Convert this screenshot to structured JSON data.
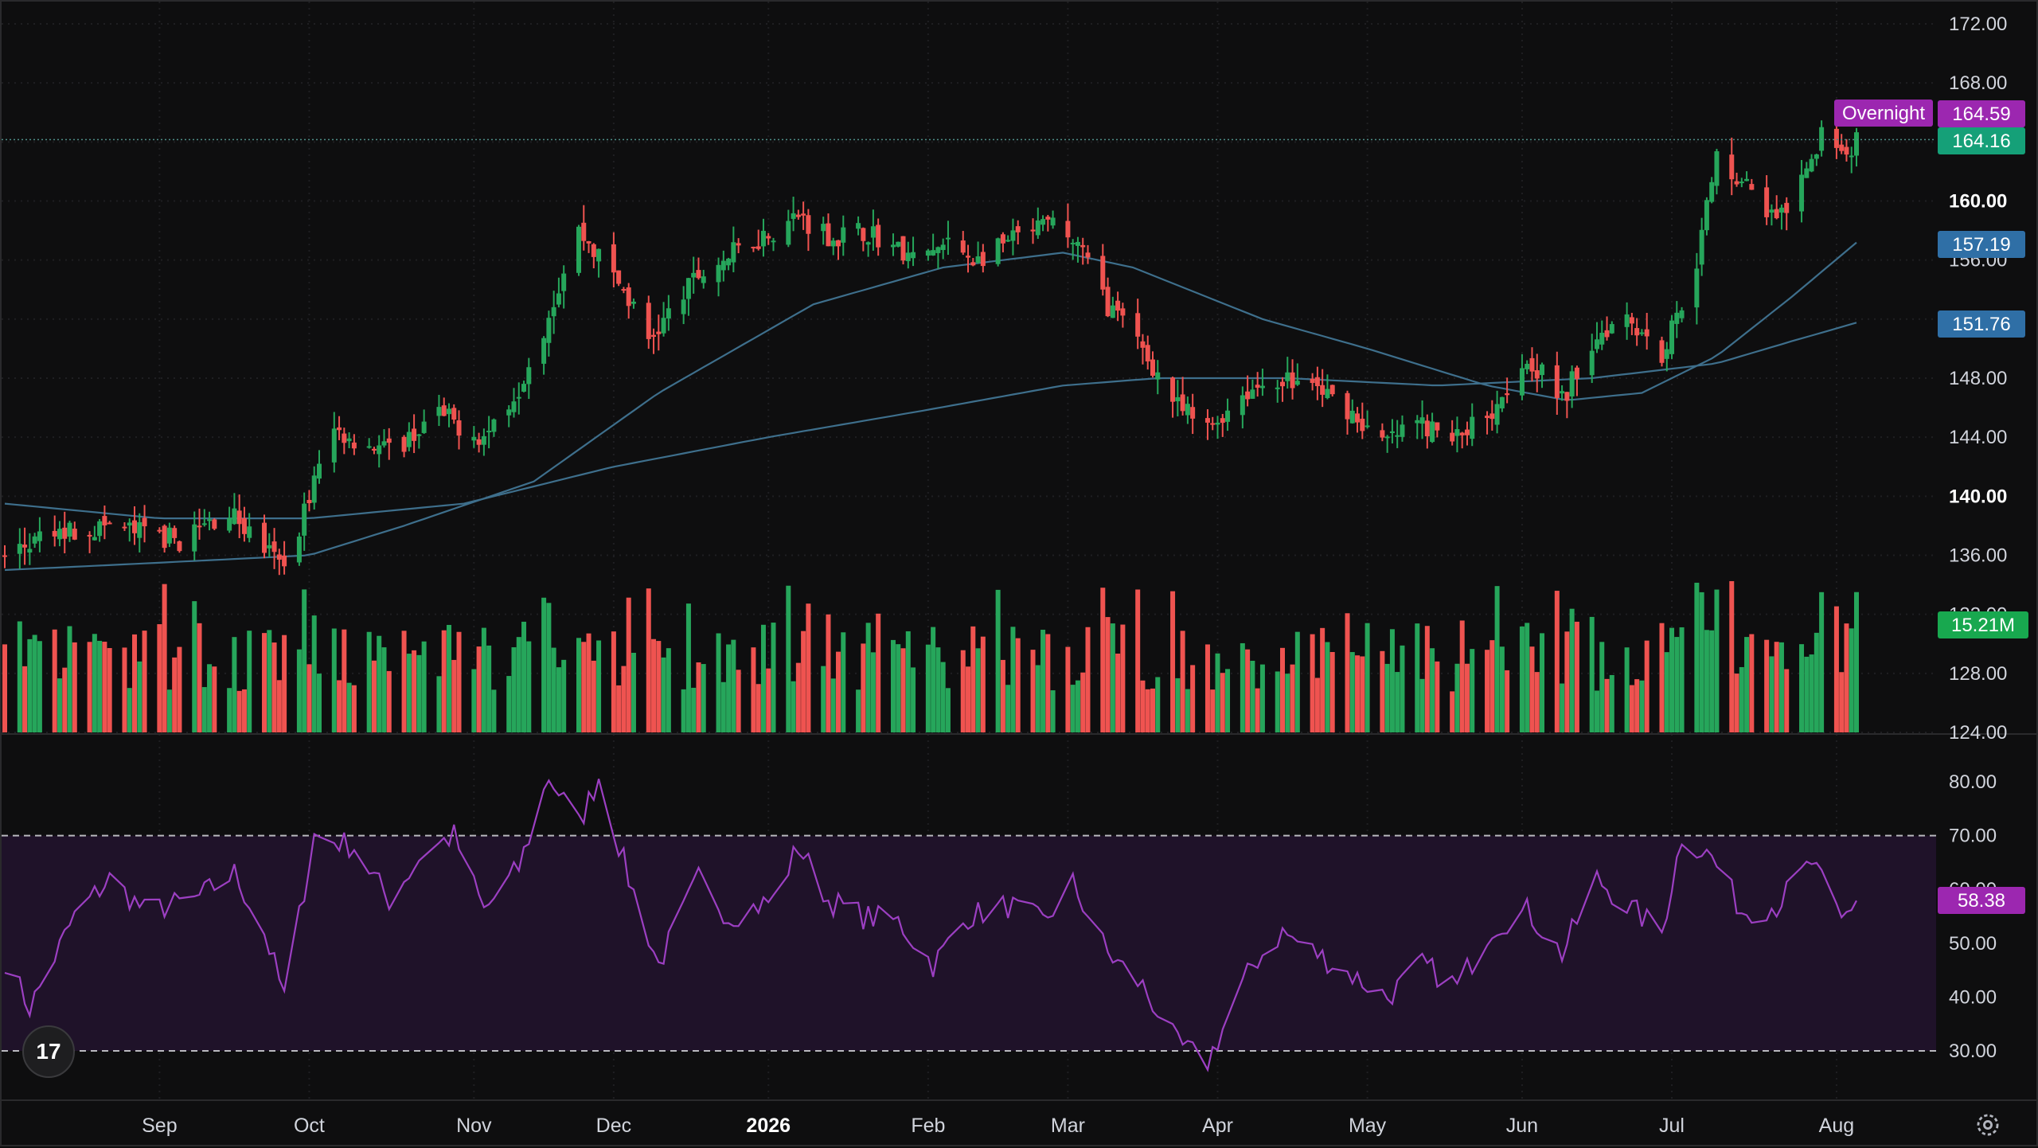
{
  "chart_data": {
    "type": "candlestick",
    "price_axis": {
      "ticks": [
        "172.00",
        "168.00",
        "164.00",
        "160.00",
        "156.00",
        "152.00",
        "148.00",
        "144.00",
        "140.00",
        "136.00",
        "132.00",
        "128.00",
        "124.00"
      ],
      "bold_ticks": [
        "160.00",
        "140.00"
      ],
      "range": [
        124,
        172
      ]
    },
    "time_axis": {
      "labels": [
        "Sep",
        "Oct",
        "Nov",
        "Dec",
        "2026",
        "Feb",
        "Mar",
        "Apr",
        "May",
        "Jun",
        "Jul",
        "Aug"
      ],
      "bold_labels": [
        "2026"
      ]
    },
    "price_anchors": [
      [
        "2025-08-01",
        136.0
      ],
      [
        "2025-08-12",
        137.5
      ],
      [
        "2025-08-22",
        138.0
      ],
      [
        "2025-09-05",
        137.0
      ],
      [
        "2025-09-15",
        139.0
      ],
      [
        "2025-09-26",
        135.0
      ],
      [
        "2025-10-02",
        141.0
      ],
      [
        "2025-10-06",
        144.5
      ],
      [
        "2025-10-17",
        143.0
      ],
      [
        "2025-10-27",
        145.5
      ],
      [
        "2025-11-05",
        144.0
      ],
      [
        "2025-11-12",
        147.5
      ],
      [
        "2025-11-17",
        151.5
      ],
      [
        "2025-11-24",
        158.0
      ],
      [
        "2025-12-03",
        154.0
      ],
      [
        "2025-12-08",
        150.5
      ],
      [
        "2025-12-18",
        155.0
      ],
      [
        "2025-12-30",
        157.5
      ],
      [
        "2026-01-07",
        159.0
      ],
      [
        "2026-01-14",
        157.5
      ],
      [
        "2026-01-21",
        158.0
      ],
      [
        "2026-01-30",
        156.0
      ],
      [
        "2026-02-06",
        157.0
      ],
      [
        "2026-02-12",
        156.0
      ],
      [
        "2026-02-20",
        157.5
      ],
      [
        "2026-02-27",
        158.5
      ],
      [
        "2026-03-04",
        157.0
      ],
      [
        "2026-03-10",
        153.0
      ],
      [
        "2026-03-17",
        150.0
      ],
      [
        "2026-03-24",
        146.0
      ],
      [
        "2026-03-30",
        144.5
      ],
      [
        "2026-04-06",
        147.0
      ],
      [
        "2026-04-13",
        148.0
      ],
      [
        "2026-04-20",
        147.5
      ],
      [
        "2026-04-27",
        146.0
      ],
      [
        "2026-05-04",
        143.5
      ],
      [
        "2026-05-11",
        145.0
      ],
      [
        "2026-05-18",
        143.8
      ],
      [
        "2026-05-26",
        146.0
      ],
      [
        "2026-06-02",
        149.5
      ],
      [
        "2026-06-09",
        146.5
      ],
      [
        "2026-06-16",
        151.0
      ],
      [
        "2026-06-22",
        152.5
      ],
      [
        "2026-06-29",
        149.5
      ],
      [
        "2026-07-06",
        156.0
      ],
      [
        "2026-07-10",
        163.0
      ],
      [
        "2026-07-16",
        161.0
      ],
      [
        "2026-07-22",
        158.5
      ],
      [
        "2026-07-28",
        161.5
      ],
      [
        "2026-08-01",
        165.5
      ],
      [
        "2026-08-05",
        163.0
      ],
      [
        "2026-08-07",
        164.16
      ]
    ],
    "ma_fast_anchors": [
      [
        "2025-08-01",
        135.0
      ],
      [
        "2025-09-01",
        135.5
      ],
      [
        "2025-10-01",
        136.0
      ],
      [
        "2025-10-20",
        138.0
      ],
      [
        "2025-11-15",
        141.0
      ],
      [
        "2025-12-10",
        147.0
      ],
      [
        "2026-01-10",
        153.0
      ],
      [
        "2026-02-05",
        155.5
      ],
      [
        "2026-03-01",
        156.5
      ],
      [
        "2026-03-15",
        155.5
      ],
      [
        "2026-04-10",
        152.0
      ],
      [
        "2026-05-01",
        150.0
      ],
      [
        "2026-05-25",
        147.5
      ],
      [
        "2026-06-10",
        146.5
      ],
      [
        "2026-06-25",
        147.0
      ],
      [
        "2026-07-10",
        149.5
      ],
      [
        "2026-07-25",
        153.5
      ],
      [
        "2026-08-07",
        157.19
      ]
    ],
    "ma_slow_anchors": [
      [
        "2025-08-01",
        139.5
      ],
      [
        "2025-09-01",
        138.5
      ],
      [
        "2025-10-01",
        138.5
      ],
      [
        "2025-11-01",
        139.5
      ],
      [
        "2025-12-01",
        142.0
      ],
      [
        "2026-01-01",
        144.0
      ],
      [
        "2026-02-01",
        145.8
      ],
      [
        "2026-03-01",
        147.5
      ],
      [
        "2026-03-20",
        148.0
      ],
      [
        "2026-04-15",
        148.0
      ],
      [
        "2026-05-15",
        147.5
      ],
      [
        "2026-06-15",
        148.0
      ],
      [
        "2026-07-10",
        149.0
      ],
      [
        "2026-07-25",
        150.5
      ],
      [
        "2026-08-07",
        151.76
      ]
    ],
    "rsi": {
      "ticks": [
        "80.00",
        "70.00",
        "60.00",
        "50.00",
        "40.00",
        "30.00"
      ],
      "range": [
        25,
        85
      ],
      "band": [
        30,
        70
      ],
      "anchors": [
        [
          "2025-08-01",
          47
        ],
        [
          "2025-08-06",
          38
        ],
        [
          "2025-08-15",
          55
        ],
        [
          "2025-08-22",
          62
        ],
        [
          "2025-08-29",
          56
        ],
        [
          "2025-09-08",
          58
        ],
        [
          "2025-09-16",
          63
        ],
        [
          "2025-09-22",
          52
        ],
        [
          "2025-09-26",
          40
        ],
        [
          "2025-10-02",
          70
        ],
        [
          "2025-10-10",
          68
        ],
        [
          "2025-10-17",
          58
        ],
        [
          "2025-10-24",
          67
        ],
        [
          "2025-10-30",
          70
        ],
        [
          "2025-11-05",
          56
        ],
        [
          "2025-11-12",
          64
        ],
        [
          "2025-11-18",
          81
        ],
        [
          "2025-11-24",
          72
        ],
        [
          "2025-11-28",
          81
        ],
        [
          "2025-12-04",
          62
        ],
        [
          "2025-12-10",
          46
        ],
        [
          "2025-12-18",
          62
        ],
        [
          "2025-12-24",
          55
        ],
        [
          "2026-01-02",
          58
        ],
        [
          "2026-01-07",
          68
        ],
        [
          "2026-01-13",
          58
        ],
        [
          "2026-01-20",
          55
        ],
        [
          "2026-01-27",
          54
        ],
        [
          "2026-02-03",
          46
        ],
        [
          "2026-02-10",
          55
        ],
        [
          "2026-02-18",
          57
        ],
        [
          "2026-02-25",
          54
        ],
        [
          "2026-03-03",
          61
        ],
        [
          "2026-03-10",
          48
        ],
        [
          "2026-03-17",
          42
        ],
        [
          "2026-03-24",
          31
        ],
        [
          "2026-03-30",
          28
        ],
        [
          "2026-04-03",
          36
        ],
        [
          "2026-04-08",
          46
        ],
        [
          "2026-04-14",
          52
        ],
        [
          "2026-04-21",
          48
        ],
        [
          "2026-04-28",
          44
        ],
        [
          "2026-05-05",
          40
        ],
        [
          "2026-05-12",
          46
        ],
        [
          "2026-05-19",
          42
        ],
        [
          "2026-05-26",
          53
        ],
        [
          "2026-06-02",
          56
        ],
        [
          "2026-06-09",
          48
        ],
        [
          "2026-06-16",
          62
        ],
        [
          "2026-06-22",
          57
        ],
        [
          "2026-06-29",
          52
        ],
        [
          "2026-07-03",
          70
        ],
        [
          "2026-07-09",
          66
        ],
        [
          "2026-07-15",
          56
        ],
        [
          "2026-07-22",
          57
        ],
        [
          "2026-07-29",
          65
        ],
        [
          "2026-08-04",
          54
        ],
        [
          "2026-08-07",
          58.38
        ]
      ]
    },
    "volume": {
      "max": 36000000,
      "last_label": "15.21M"
    },
    "badges": {
      "overnight_label": "Overnight",
      "overnight_price": "164.59",
      "last_price": "164.16",
      "ma_fast": "157.19",
      "ma_slow": "151.76",
      "rsi_last": "58.38"
    },
    "colors": {
      "up": "#26a65b",
      "down": "#ef5350",
      "ma": "#3e6f8c",
      "rsi_line": "#9c3fc2",
      "rsi_band": "#1f1229",
      "last_price_badge": "#15a078",
      "overnight_badge": "#9c27b0",
      "ma_badge": "#2f6fa6",
      "volume_badge": "#18a84f"
    }
  },
  "ui": {
    "logo_text": "17"
  }
}
